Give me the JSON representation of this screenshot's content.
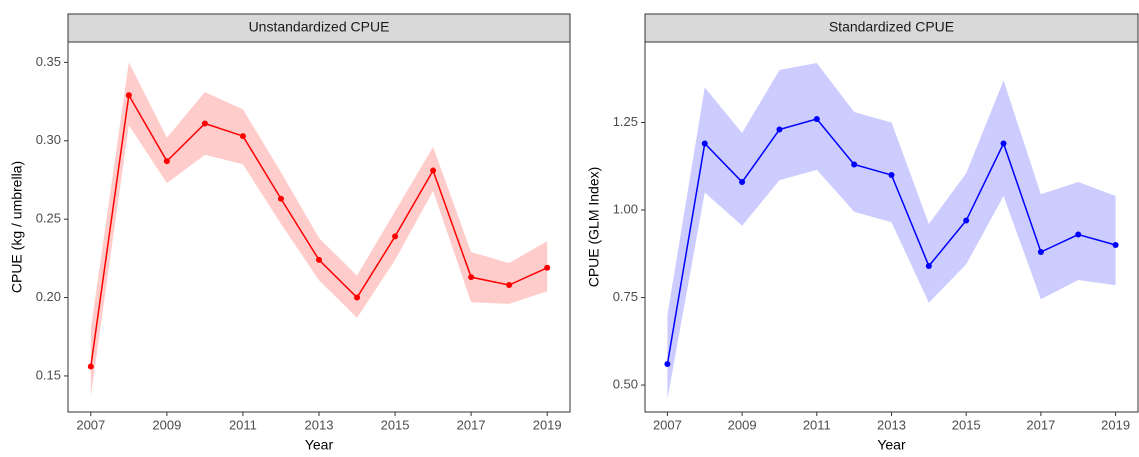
{
  "chart_data": [
    {
      "type": "line",
      "title": "Unstandardized CPUE",
      "xlabel": "Year",
      "ylabel": "CPUE (kg / umbrella)",
      "x": [
        2007,
        2008,
        2009,
        2010,
        2011,
        2012,
        2013,
        2014,
        2015,
        2016,
        2017,
        2018,
        2019
      ],
      "series": [
        {
          "color": "#ff0000",
          "band_color": "#ffcccc",
          "values": [
            0.156,
            0.329,
            0.287,
            0.311,
            0.303,
            0.263,
            0.224,
            0.2,
            0.239,
            0.281,
            0.213,
            0.208,
            0.219
          ],
          "lower": [
            0.137,
            0.31,
            0.273,
            0.291,
            0.285,
            0.247,
            0.211,
            0.187,
            0.224,
            0.268,
            0.197,
            0.196,
            0.204
          ],
          "upper": [
            0.18,
            0.35,
            0.302,
            0.331,
            0.32,
            0.28,
            0.238,
            0.214,
            0.255,
            0.296,
            0.229,
            0.222,
            0.236
          ]
        }
      ],
      "xlim": [
        2006.4,
        2019.6
      ],
      "xticks": [
        2007,
        2009,
        2011,
        2013,
        2015,
        2017,
        2019
      ],
      "ylim": [
        0.127,
        0.363
      ],
      "yticks": [
        0.15,
        {
          "value": 0.2,
          "label": "0.20"
        },
        0.25,
        {
          "value": 0.3,
          "label": "0.30"
        },
        0.35
      ],
      "grid": false
    },
    {
      "type": "line",
      "title": "Standardized CPUE",
      "xlabel": "Year",
      "ylabel": "CPUE (GLM Index)",
      "x": [
        2007,
        2008,
        2009,
        2010,
        2011,
        2012,
        2013,
        2014,
        2015,
        2016,
        2017,
        2018,
        2019
      ],
      "series": [
        {
          "color": "#0000ff",
          "band_color": "#ccccff",
          "values": [
            0.56,
            1.19,
            1.08,
            1.23,
            1.26,
            1.13,
            1.1,
            0.84,
            0.97,
            1.19,
            0.88,
            0.93,
            0.9
          ],
          "lower": [
            0.46,
            1.05,
            0.955,
            1.085,
            1.115,
            0.995,
            0.965,
            0.735,
            0.845,
            1.04,
            0.745,
            0.8,
            0.785
          ],
          "upper": [
            0.7,
            1.35,
            1.22,
            1.4,
            1.42,
            1.28,
            1.25,
            0.96,
            1.105,
            1.37,
            1.045,
            1.08,
            1.04
          ]
        }
      ],
      "xlim": [
        2006.4,
        2019.6
      ],
      "xticks": [
        2007,
        2009,
        2011,
        2013,
        2015,
        2017,
        2019
      ],
      "ylim": [
        0.423,
        1.48
      ],
      "yticks": [
        {
          "value": 0.5,
          "label": "0.50"
        },
        0.75,
        {
          "value": 1,
          "label": "1.00"
        },
        1.25
      ],
      "grid": false
    }
  ]
}
